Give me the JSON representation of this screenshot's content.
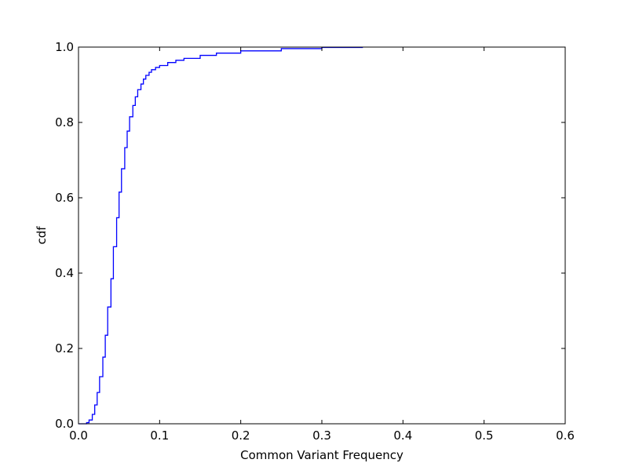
{
  "chart_data": {
    "type": "line",
    "step": "post",
    "title": "",
    "xlabel": "Common Variant Frequency",
    "ylabel": "cdf",
    "xlim": [
      0,
      0.6
    ],
    "ylim": [
      0,
      1.0
    ],
    "xticks": [
      "0.0",
      "0.1",
      "0.2",
      "0.3",
      "0.4",
      "0.5",
      "0.6"
    ],
    "yticks": [
      "0.0",
      "0.2",
      "0.4",
      "0.6",
      "0.8",
      "1.0"
    ],
    "grid": false,
    "line_color": "#0000ff",
    "series": [
      {
        "x": [
          0.0,
          0.01,
          0.013,
          0.017,
          0.02,
          0.023,
          0.026,
          0.03,
          0.033,
          0.036,
          0.04,
          0.043,
          0.047,
          0.05,
          0.053,
          0.057,
          0.06,
          0.063,
          0.067,
          0.07,
          0.073,
          0.077,
          0.08,
          0.083,
          0.087,
          0.09,
          0.095,
          0.1,
          0.11,
          0.12,
          0.13,
          0.15,
          0.17,
          0.2,
          0.25,
          0.3,
          0.35
        ],
        "y": [
          0.0,
          0.003,
          0.01,
          0.025,
          0.05,
          0.083,
          0.125,
          0.177,
          0.235,
          0.31,
          0.385,
          0.47,
          0.547,
          0.615,
          0.677,
          0.733,
          0.777,
          0.815,
          0.845,
          0.868,
          0.887,
          0.902,
          0.915,
          0.925,
          0.933,
          0.94,
          0.946,
          0.951,
          0.959,
          0.965,
          0.97,
          0.978,
          0.984,
          0.99,
          0.996,
          0.999,
          1.0
        ]
      }
    ]
  }
}
